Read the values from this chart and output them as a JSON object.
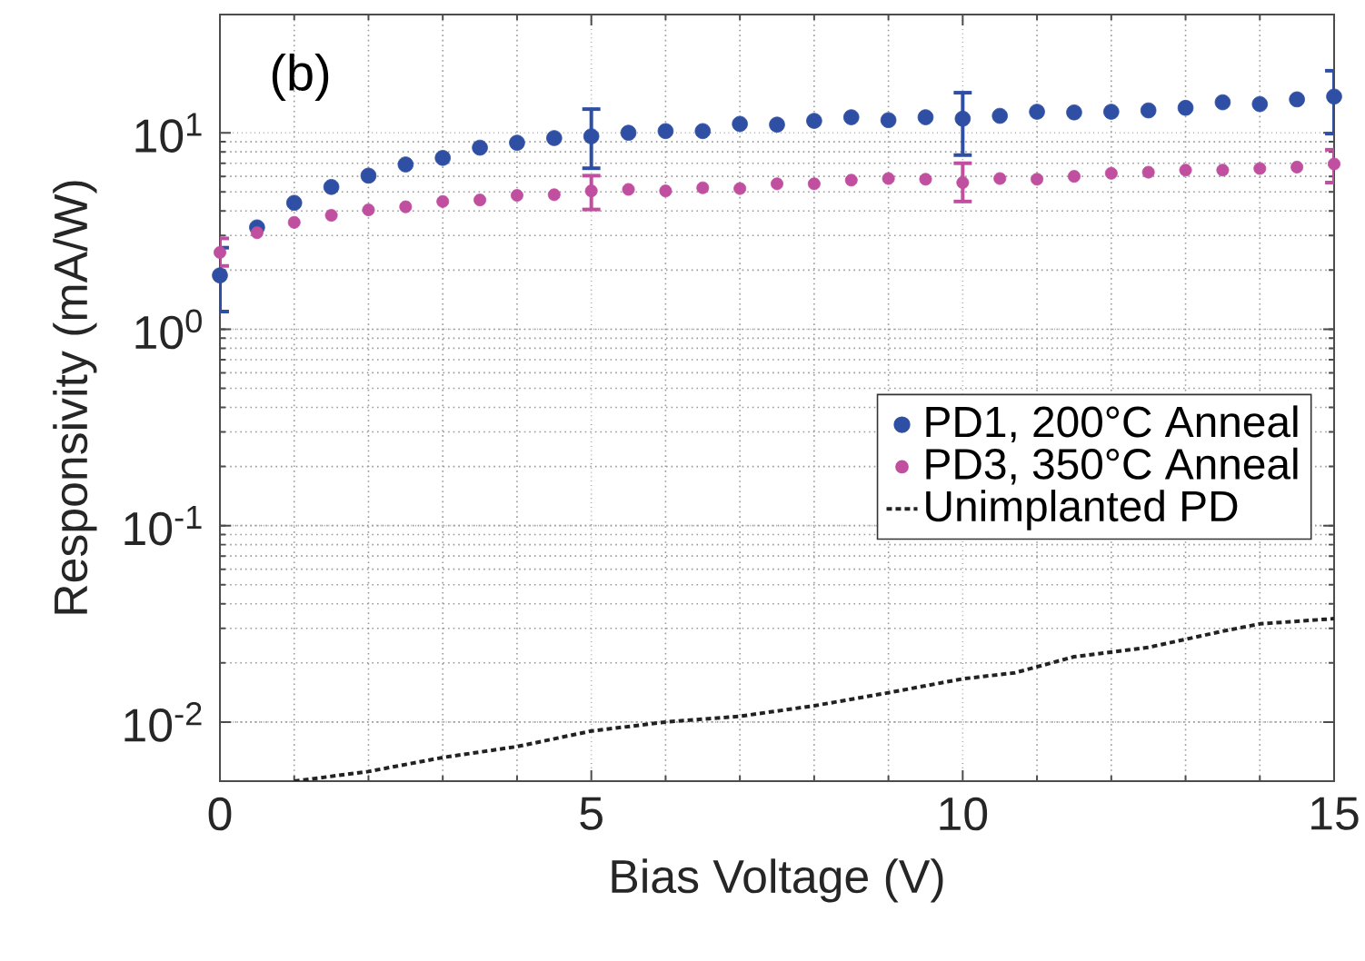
{
  "chart_data": {
    "type": "scatter",
    "xlabel": "Bias Voltage (V)",
    "ylabel": "Responsivity (mA/W)",
    "annotations": [
      "(b)"
    ],
    "log": "y",
    "grid": true,
    "legend": "right",
    "marker": "circle",
    "xlim": [
      0,
      15
    ],
    "xticks": [
      0,
      5,
      10,
      15
    ],
    "ylim": [
      0.005,
      40
    ],
    "yticks": [
      {
        "value": 0.01,
        "label": "10$^{-2}$"
      },
      {
        "value": 0.1,
        "label": "10$^{-1}$"
      },
      {
        "value": 1,
        "label": "10$^{0}$"
      },
      {
        "value": 10,
        "label": "10$^{1}$"
      }
    ],
    "series": [
      {
        "name": "PD1, 200°C Anneal",
        "type": "scatter",
        "color": "#2e4fa3",
        "x": [
          0,
          0.5,
          1,
          1.5,
          2,
          2.5,
          3,
          3.5,
          4,
          4.5,
          5,
          5.5,
          6,
          6.5,
          7,
          7.5,
          8,
          8.5,
          9,
          9.5,
          10,
          10.5,
          11,
          11.5,
          12,
          12.5,
          13,
          13.5,
          14,
          14.5,
          15
        ],
        "values": [
          1.88,
          3.3,
          4.4,
          5.3,
          6.05,
          6.9,
          7.45,
          8.4,
          8.9,
          9.4,
          9.6,
          10,
          10.2,
          10.2,
          11.1,
          11,
          11.5,
          12,
          11.6,
          12,
          11.8,
          12.2,
          12.8,
          12.7,
          12.8,
          13,
          13.4,
          14.3,
          14,
          14.8,
          15.3
        ],
        "errors": [
          [
            1.23,
            2.6
          ],
          null,
          null,
          null,
          null,
          null,
          null,
          null,
          null,
          null,
          [
            6.6,
            13.2
          ],
          null,
          null,
          null,
          null,
          null,
          null,
          null,
          null,
          null,
          [
            7.7,
            16
          ],
          null,
          null,
          null,
          null,
          null,
          null,
          null,
          null,
          null,
          [
            9.9,
            20.7
          ]
        ]
      },
      {
        "name": "PD3, 350°C Anneal",
        "type": "scatter",
        "color": "#c04fa0",
        "x": [
          0,
          0.5,
          1,
          1.5,
          2,
          2.5,
          3,
          3.5,
          4,
          4.5,
          5,
          5.5,
          6,
          6.5,
          7,
          7.5,
          8,
          8.5,
          9,
          9.5,
          10,
          10.5,
          11,
          11.5,
          12,
          12.5,
          13,
          13.5,
          14,
          14.5,
          15
        ],
        "values": [
          2.46,
          3.1,
          3.5,
          3.8,
          4.05,
          4.2,
          4.47,
          4.55,
          4.8,
          4.84,
          5.06,
          5.15,
          5.06,
          5.25,
          5.2,
          5.5,
          5.5,
          5.74,
          5.85,
          5.8,
          5.58,
          5.85,
          5.8,
          6.0,
          6.22,
          6.3,
          6.46,
          6.46,
          6.58,
          6.69,
          6.94
        ],
        "errors": [
          [
            2.1,
            2.9
          ],
          null,
          null,
          null,
          null,
          null,
          null,
          null,
          null,
          null,
          [
            4.07,
            6.05
          ],
          null,
          null,
          null,
          null,
          null,
          null,
          null,
          null,
          null,
          [
            4.47,
            7.0
          ],
          null,
          null,
          null,
          null,
          null,
          null,
          null,
          null,
          null,
          [
            5.58,
            8.2
          ]
        ]
      },
      {
        "name": "Unimplanted PD",
        "type": "line",
        "color": "#222222",
        "marker": "none",
        "line_style": "dashed",
        "x": [
          1,
          2,
          3,
          4,
          5,
          6,
          7,
          8,
          9,
          10,
          10.7,
          11.5,
          12.5,
          13.5,
          14,
          15
        ],
        "values": [
          0.005,
          0.0056,
          0.0066,
          0.0075,
          0.009,
          0.01,
          0.0107,
          0.0121,
          0.0141,
          0.0166,
          0.0178,
          0.0215,
          0.024,
          0.029,
          0.0316,
          0.0336
        ]
      }
    ]
  }
}
